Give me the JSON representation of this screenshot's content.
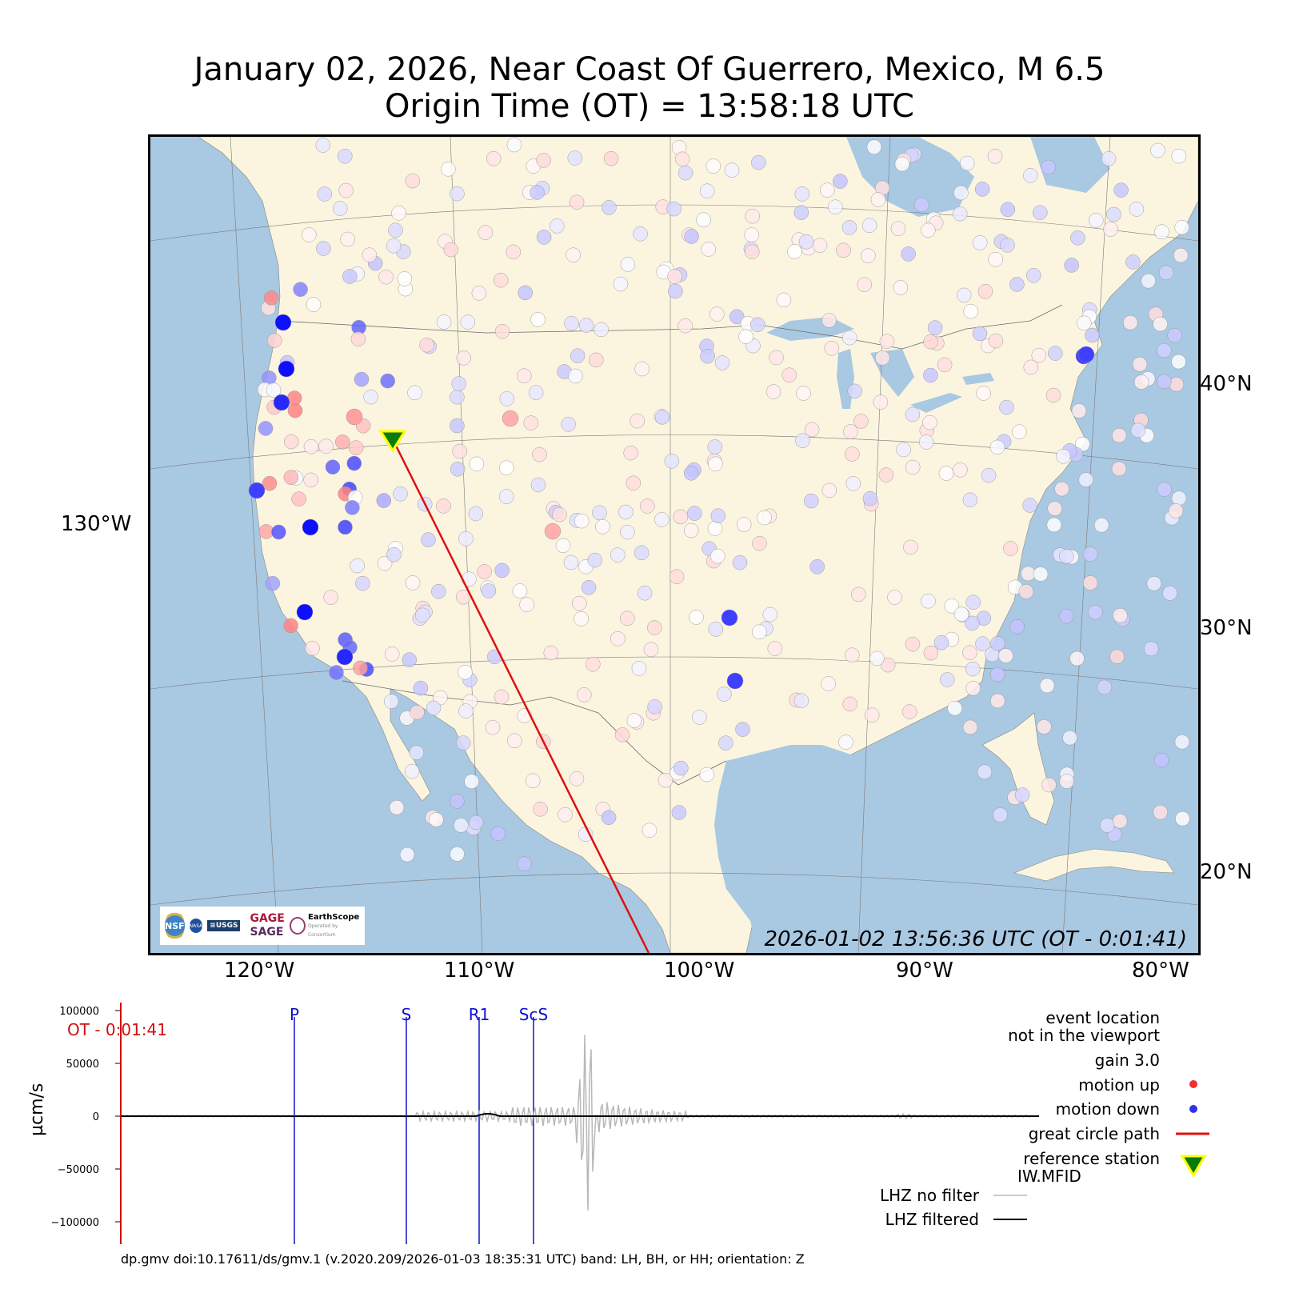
{
  "title": {
    "line1": "January 02, 2026, Near Coast Of Guerrero, Mexico, M 6.5",
    "line2": "Origin Time (OT) = 13:58:18 UTC"
  },
  "map": {
    "timestamp": "2026-01-02 13:56:36 UTC (OT - 0:01:41)",
    "lat_labels": [
      "40°N",
      "30°N",
      "20°N"
    ],
    "lon_labels": [
      "120°W",
      "110°W",
      "100°W",
      "90°W",
      "80°W"
    ],
    "side_lon_label": "130°W",
    "colors": {
      "ocean": "#a9c8e2",
      "land": "#fbf5e0",
      "up": "#f03030",
      "down": "#2020f0",
      "path": "#e01010"
    },
    "logos": {
      "nsf": "NSF",
      "nasa": "NASA",
      "usgs": "≡USGS",
      "gage": "GAGE",
      "sage": "SAGE",
      "earthscope": "EarthScope",
      "consortium": "Consortium",
      "operated": "Operated by"
    }
  },
  "seismogram": {
    "y_axis_label": "µcm/s",
    "y_ticks": [
      "100000",
      "50000",
      "0",
      "−50000",
      "−100000"
    ],
    "ot_label": "OT - 0:01:41",
    "phases": [
      "P",
      "S",
      "R1",
      "ScS"
    ],
    "legend": {
      "event_location_1": "event location",
      "event_location_2": "not in the viewport",
      "gain": "gain  3.0",
      "motion_up": "motion up",
      "motion_down": "motion down",
      "great_circle": "great circle path",
      "reference_station": "reference station",
      "reference_code": "IW.MFID",
      "lhz_nofilter": "LHZ no filter",
      "lhz_filtered": "LHZ filtered"
    },
    "footer": "dp.gmv doi:10.17611/ds/gmv.1 (v.2020.209/2026-01-03 18:35:31 UTC) band: LH, BH, or HH; orientation: Z"
  }
}
